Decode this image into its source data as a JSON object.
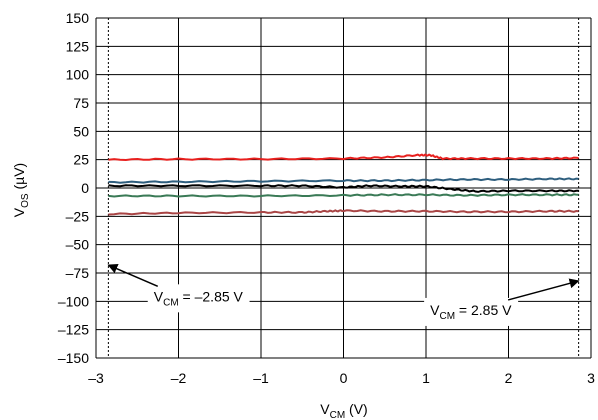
{
  "chart_data": {
    "type": "line",
    "xlabel": {
      "main": "V",
      "sub": "CM",
      "unit": " (V)"
    },
    "ylabel": {
      "main": "V",
      "sub": "OS",
      "unit": " (µV)"
    },
    "xlim": [
      -3,
      3
    ],
    "ylim": [
      -150,
      150
    ],
    "xticks": [
      -3,
      -2,
      -1,
      0,
      1,
      2,
      3
    ],
    "xtick_labels": [
      "–3",
      "–2",
      "–1",
      "0",
      "1",
      "2",
      "3"
    ],
    "yticks": [
      150,
      125,
      100,
      75,
      50,
      25,
      0,
      -25,
      -50,
      -75,
      -100,
      -125,
      -150
    ],
    "ytick_labels": [
      "150",
      "125",
      "100",
      "75",
      "50",
      "25",
      "0",
      "–25",
      "–50",
      "–75",
      "–100",
      "–125",
      "–150"
    ],
    "grid": true,
    "series": [
      {
        "color": "#e8201e",
        "x": [
          -2.85,
          -2,
          -1,
          0,
          0.5,
          0.9,
          1.05,
          1.2,
          1.5,
          2,
          2.5,
          2.85
        ],
        "y": [
          25,
          25.5,
          25.5,
          26,
          27,
          29,
          29,
          26,
          26,
          26,
          26,
          26.5
        ]
      },
      {
        "color": "#2e5e7e",
        "x": [
          -2.85,
          -2,
          -1,
          0,
          0.5,
          1,
          1.5,
          2,
          2.5,
          2.85
        ],
        "y": [
          5,
          5.5,
          6,
          6.5,
          6.5,
          7,
          7.5,
          7.5,
          8,
          8
        ]
      },
      {
        "color": "#000000",
        "x": [
          -2.85,
          -2,
          -1,
          -0.5,
          0,
          0.3,
          0.7,
          1,
          1.3,
          1.6,
          2,
          2.5,
          2.85
        ],
        "y": [
          2,
          2,
          2,
          2,
          0.5,
          2,
          1.5,
          1.5,
          -1,
          -3,
          -2.5,
          -2.5,
          -2.5
        ]
      },
      {
        "color": "#3a7a56",
        "x": [
          -2.85,
          -2,
          -1,
          0,
          0.5,
          1,
          1.5,
          2,
          2.5,
          2.85
        ],
        "y": [
          -7,
          -7,
          -7,
          -6.5,
          -6,
          -6,
          -6.5,
          -6,
          -6,
          -6
        ]
      },
      {
        "color": "#a94545",
        "x": [
          -2.85,
          -2,
          -1,
          -0.5,
          -0.2,
          0,
          0.5,
          1,
          1.5,
          2,
          2.5,
          2.85
        ],
        "y": [
          -23,
          -22,
          -21.5,
          -21.5,
          -20.5,
          -20,
          -20.5,
          -20.5,
          -21,
          -21,
          -20.5,
          -20.5
        ]
      }
    ],
    "vlines": [
      -2.85,
      2.85
    ],
    "annotations": [
      {
        "main": "V",
        "sub": "CM",
        "rest": " = –2.85 V",
        "x": -2.3,
        "y": -100,
        "arrow_to": [
          -2.85,
          -68
        ]
      },
      {
        "main": "V",
        "sub": "CM",
        "rest": " = 2.85 V",
        "x": 1.05,
        "y": -112,
        "arrow_to": [
          2.85,
          -82
        ]
      }
    ]
  }
}
